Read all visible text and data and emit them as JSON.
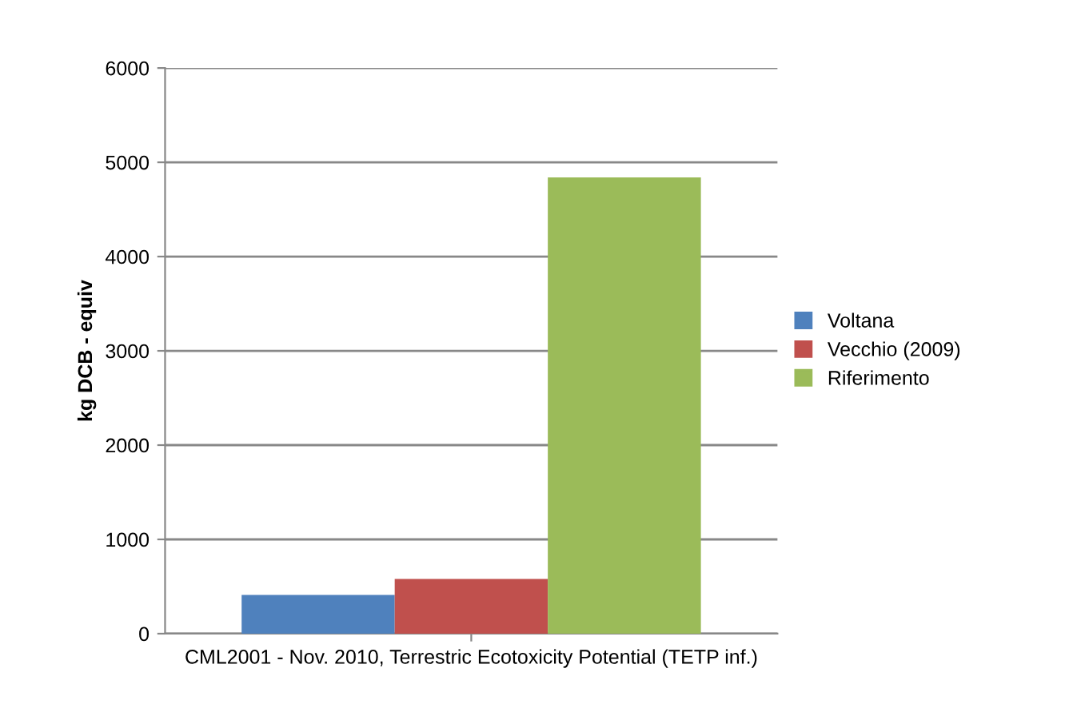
{
  "chart_data": {
    "type": "bar",
    "ylabel": "kg DCB - equiv",
    "categories": [
      "CML2001 - Nov. 2010, Terrestric Ecotoxicity Potential (TETP inf.)"
    ],
    "series": [
      {
        "name": "Voltana",
        "color": "#4f81bd",
        "values": [
          410
        ]
      },
      {
        "name": "Vecchio (2009)",
        "color": "#c0504d",
        "values": [
          580
        ]
      },
      {
        "name": "Riferimento",
        "color": "#9bbb59",
        "values": [
          4840
        ]
      }
    ],
    "ylim": [
      0,
      6000
    ],
    "yticks": [
      0,
      1000,
      2000,
      3000,
      4000,
      5000,
      6000
    ],
    "grid": "y",
    "legend": "right"
  }
}
